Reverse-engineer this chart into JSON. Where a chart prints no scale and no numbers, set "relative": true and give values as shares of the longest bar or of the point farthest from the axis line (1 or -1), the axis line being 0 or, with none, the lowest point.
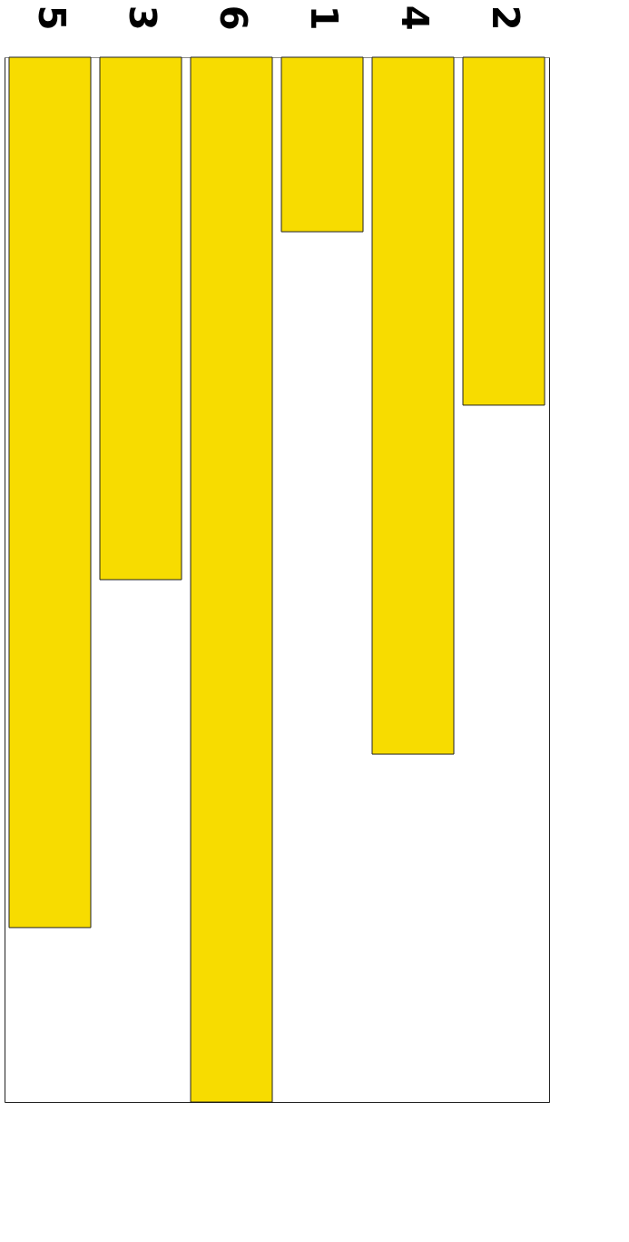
{
  "chart_data": {
    "type": "bar",
    "relative": true,
    "categories": [
      "5",
      "3",
      "6",
      "1",
      "4",
      "2"
    ],
    "values": [
      -0.833,
      -0.5,
      -1,
      -0.167,
      -0.667,
      -0.333
    ],
    "color": "#f7dc00"
  }
}
